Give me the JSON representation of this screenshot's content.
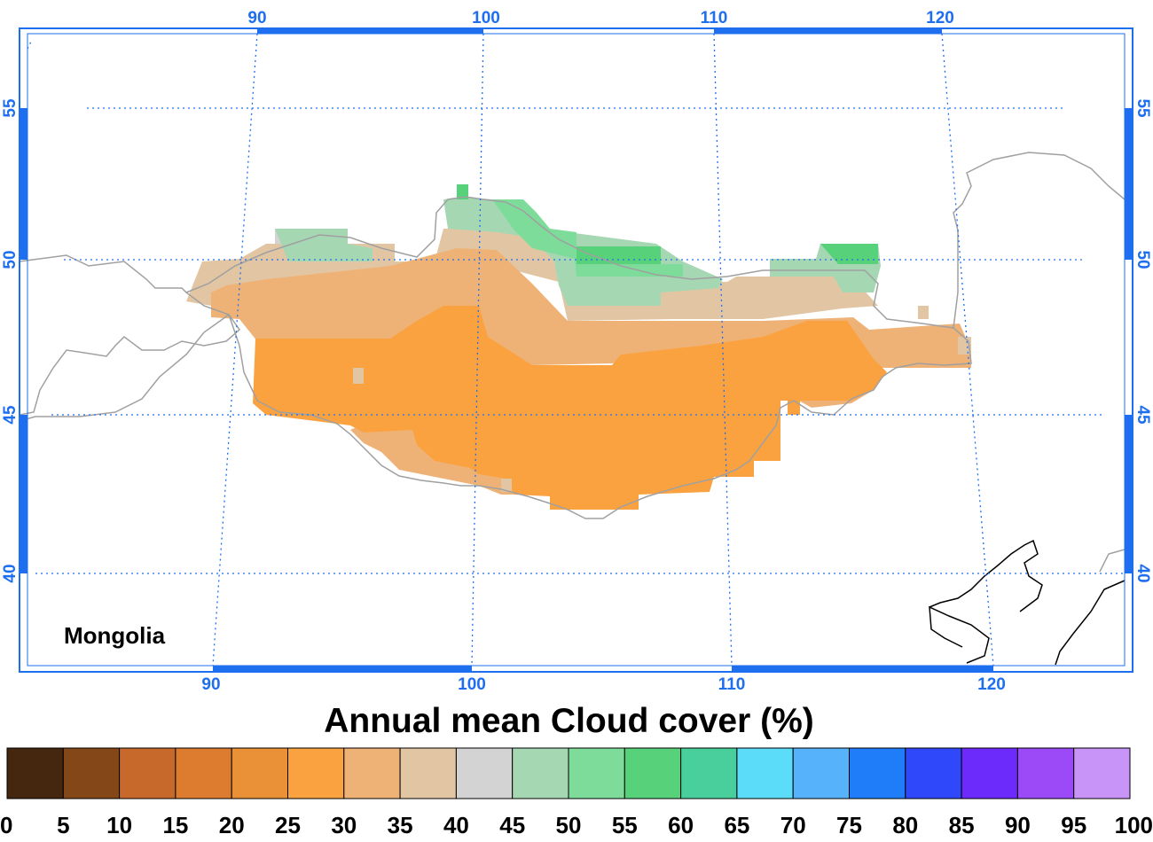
{
  "map": {
    "region_label": "Mongolia",
    "lon_ticks": [
      "90",
      "100",
      "110",
      "120"
    ],
    "lat_ticks": [
      "55",
      "50",
      "45",
      "40"
    ],
    "colors": {
      "axis": "#1e6ff0",
      "grid": "#1e6ff0",
      "border": "#a0a0a0",
      "coast": "#000000"
    }
  },
  "chart_data": {
    "type": "heatmap",
    "title": "Annual mean Cloud cover (%)",
    "colorbar": {
      "ticks": [
        "0",
        "5",
        "10",
        "15",
        "20",
        "25",
        "30",
        "35",
        "40",
        "45",
        "50",
        "55",
        "60",
        "65",
        "70",
        "75",
        "80",
        "85",
        "90",
        "95",
        "100"
      ],
      "colors": [
        "#45260f",
        "#844717",
        "#c7692a",
        "#dd7c2f",
        "#ea9138",
        "#fba240",
        "#efb276",
        "#e2c6a4",
        "#d3d3d3",
        "#a6d7b3",
        "#7ddc9a",
        "#57d27b",
        "#48cf9c",
        "#5bdcf8",
        "#56b2fa",
        "#1f7df9",
        "#2f48fa",
        "#6d2bfb",
        "#9c4af7",
        "#c894f7"
      ]
    }
  }
}
